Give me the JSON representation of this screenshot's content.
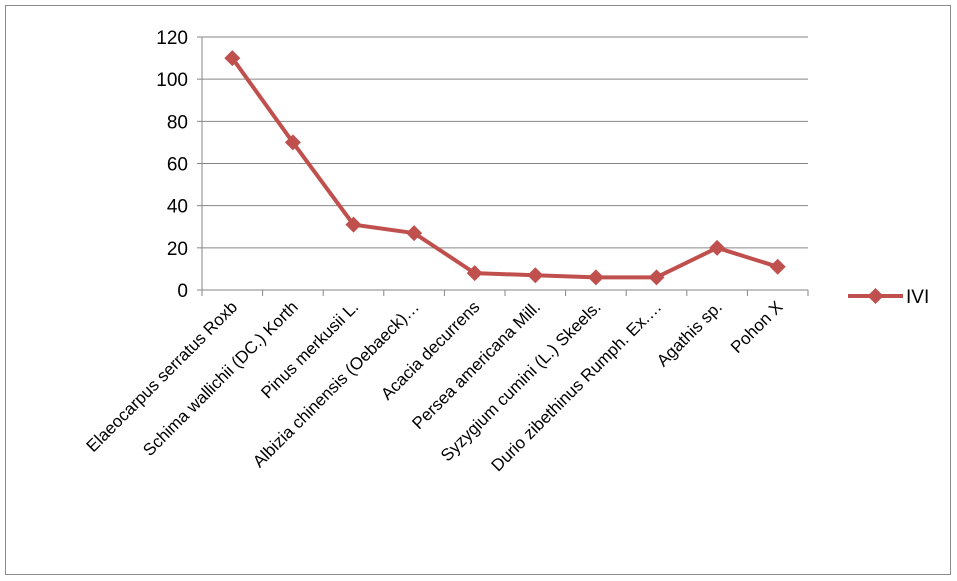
{
  "chart_data": {
    "type": "line",
    "categories": [
      "Elaeocarpus serratus Roxb",
      "Schima wallichii (DC.) Korth",
      "Pinus merkusii L.",
      "Albizia chinensis (Oebaeck)…",
      "Acacia decurrens",
      "Persea americana Mill.",
      "Syzygium cumini  (L.) Skeels.",
      "Durio zibethinus Rumph. Ex.…",
      "Agathis sp.",
      "Pohon X"
    ],
    "series": [
      {
        "name": "IVI",
        "values": [
          110,
          70,
          31,
          27,
          8,
          7,
          6,
          6,
          20,
          11
        ],
        "color": "#c0504d"
      }
    ],
    "yticks": [
      "0",
      "20",
      "40",
      "60",
      "80",
      "100",
      "120"
    ],
    "ylim": [
      0,
      120
    ],
    "grid": true,
    "legend_position": "right",
    "marker": "diamond"
  }
}
